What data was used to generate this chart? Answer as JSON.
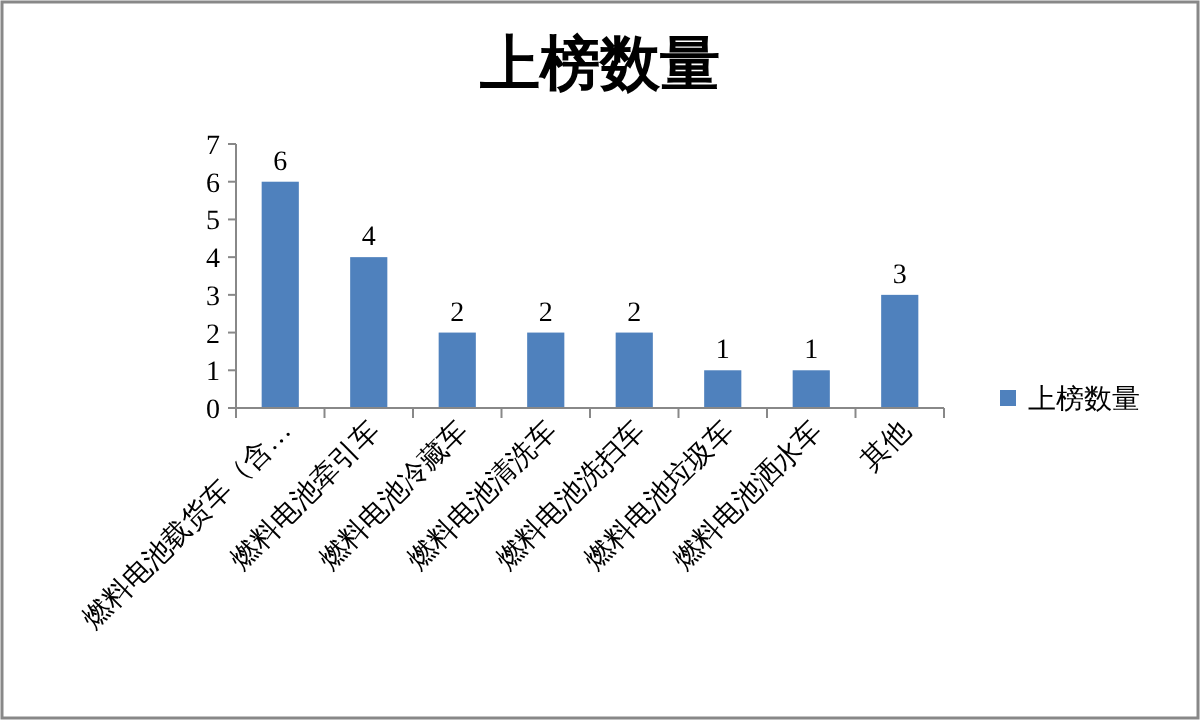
{
  "chart_data": {
    "type": "bar",
    "title": "上榜数量",
    "categories": [
      "燃料电池载货车（含…",
      "燃料电池牵引车",
      "燃料电池冷藏车",
      "燃料电池清洗车",
      "燃料电池洗扫车",
      "燃料电池垃圾车",
      "燃料电池洒水车",
      "其他"
    ],
    "series": [
      {
        "name": "上榜数量",
        "color": "#4f81bd",
        "values": [
          6,
          4,
          2,
          2,
          2,
          1,
          1,
          3
        ]
      }
    ],
    "ylim": [
      0,
      7
    ],
    "yticks": [
      0,
      1,
      2,
      3,
      4,
      5,
      6,
      7
    ],
    "data_labels": true,
    "legend": "right",
    "grid": false
  }
}
